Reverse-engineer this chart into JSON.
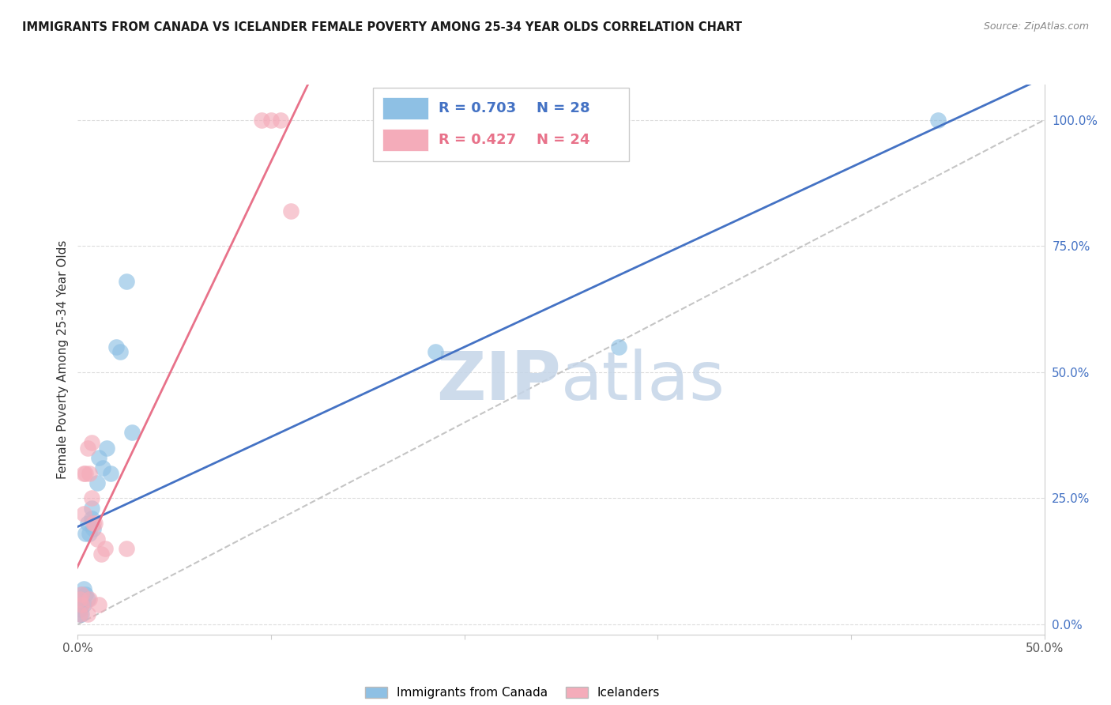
{
  "title": "IMMIGRANTS FROM CANADA VS ICELANDER FEMALE POVERTY AMONG 25-34 YEAR OLDS CORRELATION CHART",
  "source": "Source: ZipAtlas.com",
  "ylabel": "Female Poverty Among 25-34 Year Olds",
  "legend_label_blue": "Immigrants from Canada",
  "legend_label_pink": "Icelanders",
  "legend_r_blue": "R = 0.703",
  "legend_n_blue": "N = 28",
  "legend_r_pink": "R = 0.427",
  "legend_n_pink": "N = 24",
  "xlim": [
    0.0,
    0.5
  ],
  "ylim": [
    -0.02,
    1.07
  ],
  "xticks": [
    0.0,
    0.1,
    0.2,
    0.3,
    0.4,
    0.5
  ],
  "yticks_right": [
    0.0,
    0.25,
    0.5,
    0.75,
    1.0
  ],
  "ytick_labels_right": [
    "0.0%",
    "25.0%",
    "50.0%",
    "75.0%",
    "100.0%"
  ],
  "xtick_labels": [
    "0.0%",
    "",
    "",
    "",
    "",
    "50.0%"
  ],
  "blue_scatter_x": [
    0.001,
    0.001,
    0.001,
    0.002,
    0.002,
    0.002,
    0.003,
    0.003,
    0.004,
    0.004,
    0.005,
    0.005,
    0.006,
    0.007,
    0.007,
    0.008,
    0.01,
    0.011,
    0.013,
    0.015,
    0.017,
    0.02,
    0.022,
    0.025,
    0.028,
    0.185,
    0.28,
    0.445
  ],
  "blue_scatter_y": [
    0.02,
    0.03,
    0.05,
    0.02,
    0.04,
    0.06,
    0.04,
    0.07,
    0.06,
    0.18,
    0.05,
    0.2,
    0.18,
    0.21,
    0.23,
    0.19,
    0.28,
    0.33,
    0.31,
    0.35,
    0.3,
    0.55,
    0.54,
    0.68,
    0.38,
    0.54,
    0.55,
    1.0
  ],
  "pink_scatter_x": [
    0.001,
    0.001,
    0.002,
    0.002,
    0.003,
    0.003,
    0.004,
    0.005,
    0.005,
    0.006,
    0.006,
    0.007,
    0.007,
    0.008,
    0.009,
    0.01,
    0.011,
    0.012,
    0.014,
    0.025,
    0.095,
    0.1,
    0.105,
    0.11
  ],
  "pink_scatter_y": [
    0.02,
    0.05,
    0.04,
    0.06,
    0.22,
    0.3,
    0.3,
    0.02,
    0.35,
    0.05,
    0.3,
    0.25,
    0.36,
    0.2,
    0.2,
    0.17,
    0.04,
    0.14,
    0.15,
    0.15,
    1.0,
    1.0,
    1.0,
    0.82
  ],
  "blue_color": "#8EC0E4",
  "pink_color": "#F4ACBA",
  "blue_line_color": "#4472C4",
  "pink_line_color": "#E8728A",
  "ref_line_color": "#BBBBBB",
  "watermark_zip": "ZIP",
  "watermark_atlas": "atlas",
  "watermark_color_zip": "#C5D5E8",
  "watermark_color_atlas": "#C5D5E8",
  "background_color": "#FFFFFF",
  "grid_color": "#DDDDDD",
  "title_color": "#1A1A1A",
  "source_color": "#888888",
  "ylabel_color": "#333333",
  "tick_color": "#555555",
  "right_tick_color": "#4472C4"
}
